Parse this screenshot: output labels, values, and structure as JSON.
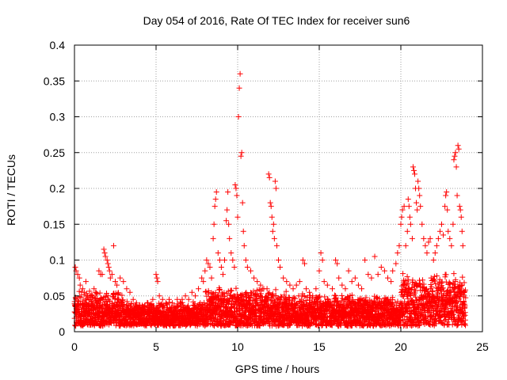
{
  "chart_data": {
    "type": "scatter",
    "title": "Day 054 of 2016, Rate Of TEC Index for receiver sun6",
    "xlabel": "GPS time / hours",
    "ylabel": "ROTI / TECUs",
    "xlim": [
      0,
      25
    ],
    "ylim": [
      0,
      0.4
    ],
    "grid": true,
    "marker": "+",
    "series_color": "#ff0000",
    "x_ticks": [
      0,
      5,
      10,
      15,
      20,
      25
    ],
    "x_tick_labels": [
      "0",
      "5",
      "10",
      "15",
      "20",
      "25"
    ],
    "y_ticks": [
      0,
      0.05,
      0.1,
      0.15,
      0.2,
      0.25,
      0.3,
      0.35,
      0.4
    ],
    "y_tick_labels": [
      "0",
      "0.05",
      "0.1",
      "0.15",
      "0.2",
      "0.25",
      "0.3",
      "0.35",
      "0.4"
    ],
    "series": [
      {
        "name": "ROTI",
        "points": [
          [
            0.05,
            0.09
          ],
          [
            0.1,
            0.085
          ],
          [
            0.2,
            0.08
          ],
          [
            0.3,
            0.075
          ],
          [
            0.35,
            0.065
          ],
          [
            0.5,
            0.06
          ],
          [
            0.6,
            0.055
          ],
          [
            0.7,
            0.07
          ],
          [
            0.8,
            0.05
          ],
          [
            0.9,
            0.045
          ],
          [
            1.0,
            0.05
          ],
          [
            1.2,
            0.06
          ],
          [
            1.3,
            0.055
          ],
          [
            1.5,
            0.085
          ],
          [
            1.6,
            0.08
          ],
          [
            1.7,
            0.08
          ],
          [
            1.8,
            0.115
          ],
          [
            1.85,
            0.11
          ],
          [
            1.9,
            0.105
          ],
          [
            2.0,
            0.1
          ],
          [
            2.05,
            0.095
          ],
          [
            2.1,
            0.09
          ],
          [
            2.15,
            0.085
          ],
          [
            2.2,
            0.075
          ],
          [
            2.3,
            0.08
          ],
          [
            2.4,
            0.12
          ],
          [
            2.5,
            0.07
          ],
          [
            2.6,
            0.065
          ],
          [
            2.8,
            0.075
          ],
          [
            3.0,
            0.07
          ],
          [
            3.2,
            0.06
          ],
          [
            3.4,
            0.055
          ],
          [
            3.6,
            0.045
          ],
          [
            3.8,
            0.04
          ],
          [
            4.0,
            0.035
          ],
          [
            4.2,
            0.035
          ],
          [
            4.5,
            0.04
          ],
          [
            4.8,
            0.045
          ],
          [
            5.0,
            0.08
          ],
          [
            5.05,
            0.075
          ],
          [
            5.1,
            0.07
          ],
          [
            5.2,
            0.05
          ],
          [
            5.4,
            0.045
          ],
          [
            5.6,
            0.04
          ],
          [
            5.8,
            0.045
          ],
          [
            6.0,
            0.04
          ],
          [
            6.3,
            0.045
          ],
          [
            6.6,
            0.045
          ],
          [
            6.8,
            0.05
          ],
          [
            7.0,
            0.045
          ],
          [
            7.2,
            0.055
          ],
          [
            7.4,
            0.05
          ],
          [
            7.6,
            0.06
          ],
          [
            7.8,
            0.075
          ],
          [
            7.9,
            0.07
          ],
          [
            8.0,
            0.085
          ],
          [
            8.1,
            0.1
          ],
          [
            8.2,
            0.095
          ],
          [
            8.3,
            0.09
          ],
          [
            8.4,
            0.075
          ],
          [
            8.5,
            0.13
          ],
          [
            8.55,
            0.15
          ],
          [
            8.6,
            0.175
          ],
          [
            8.65,
            0.185
          ],
          [
            8.7,
            0.195
          ],
          [
            8.8,
            0.11
          ],
          [
            8.9,
            0.1
          ],
          [
            9.0,
            0.09
          ],
          [
            9.1,
            0.08
          ],
          [
            9.2,
            0.1
          ],
          [
            9.3,
            0.155
          ],
          [
            9.35,
            0.17
          ],
          [
            9.4,
            0.195
          ],
          [
            9.45,
            0.15
          ],
          [
            9.5,
            0.13
          ],
          [
            9.6,
            0.11
          ],
          [
            9.7,
            0.1
          ],
          [
            9.8,
            0.09
          ],
          [
            9.85,
            0.205
          ],
          [
            9.9,
            0.2
          ],
          [
            9.95,
            0.19
          ],
          [
            10.0,
            0.16
          ],
          [
            10.05,
            0.3
          ],
          [
            10.1,
            0.34
          ],
          [
            10.15,
            0.36
          ],
          [
            10.2,
            0.245
          ],
          [
            10.25,
            0.25
          ],
          [
            10.3,
            0.18
          ],
          [
            10.35,
            0.14
          ],
          [
            10.4,
            0.12
          ],
          [
            10.5,
            0.1
          ],
          [
            10.6,
            0.09
          ],
          [
            10.8,
            0.085
          ],
          [
            11.0,
            0.075
          ],
          [
            11.2,
            0.07
          ],
          [
            11.4,
            0.065
          ],
          [
            11.6,
            0.06
          ],
          [
            11.8,
            0.06
          ],
          [
            11.9,
            0.22
          ],
          [
            11.95,
            0.215
          ],
          [
            12.0,
            0.18
          ],
          [
            12.05,
            0.175
          ],
          [
            12.1,
            0.16
          ],
          [
            12.15,
            0.14
          ],
          [
            12.2,
            0.15
          ],
          [
            12.25,
            0.13
          ],
          [
            12.3,
            0.21
          ],
          [
            12.35,
            0.2
          ],
          [
            12.4,
            0.12
          ],
          [
            12.5,
            0.1
          ],
          [
            12.6,
            0.09
          ],
          [
            12.8,
            0.075
          ],
          [
            13.0,
            0.07
          ],
          [
            13.2,
            0.065
          ],
          [
            13.4,
            0.06
          ],
          [
            13.6,
            0.065
          ],
          [
            13.8,
            0.07
          ],
          [
            14.0,
            0.1
          ],
          [
            14.1,
            0.095
          ],
          [
            14.2,
            0.06
          ],
          [
            14.4,
            0.055
          ],
          [
            14.6,
            0.05
          ],
          [
            14.8,
            0.06
          ],
          [
            15.0,
            0.085
          ],
          [
            15.1,
            0.11
          ],
          [
            15.2,
            0.1
          ],
          [
            15.3,
            0.07
          ],
          [
            15.5,
            0.065
          ],
          [
            15.8,
            0.06
          ],
          [
            16.0,
            0.1
          ],
          [
            16.1,
            0.095
          ],
          [
            16.2,
            0.075
          ],
          [
            16.4,
            0.065
          ],
          [
            16.6,
            0.06
          ],
          [
            16.8,
            0.085
          ],
          [
            17.0,
            0.07
          ],
          [
            17.2,
            0.075
          ],
          [
            17.4,
            0.065
          ],
          [
            17.6,
            0.06
          ],
          [
            17.8,
            0.1
          ],
          [
            18.0,
            0.08
          ],
          [
            18.2,
            0.075
          ],
          [
            18.4,
            0.105
          ],
          [
            18.6,
            0.08
          ],
          [
            18.8,
            0.09
          ],
          [
            19.0,
            0.085
          ],
          [
            19.2,
            0.075
          ],
          [
            19.4,
            0.07
          ],
          [
            19.5,
            0.085
          ],
          [
            19.7,
            0.095
          ],
          [
            19.8,
            0.11
          ],
          [
            19.9,
            0.12
          ],
          [
            20.0,
            0.15
          ],
          [
            20.05,
            0.16
          ],
          [
            20.1,
            0.17
          ],
          [
            20.2,
            0.175
          ],
          [
            20.3,
            0.12
          ],
          [
            20.4,
            0.14
          ],
          [
            20.45,
            0.185
          ],
          [
            20.5,
            0.175
          ],
          [
            20.55,
            0.16
          ],
          [
            20.6,
            0.15
          ],
          [
            20.7,
            0.13
          ],
          [
            20.75,
            0.23
          ],
          [
            20.8,
            0.225
          ],
          [
            20.85,
            0.22
          ],
          [
            20.9,
            0.2
          ],
          [
            20.95,
            0.18
          ],
          [
            21.0,
            0.17
          ],
          [
            21.05,
            0.21
          ],
          [
            21.1,
            0.2
          ],
          [
            21.15,
            0.19
          ],
          [
            21.2,
            0.175
          ],
          [
            21.3,
            0.15
          ],
          [
            21.4,
            0.13
          ],
          [
            21.5,
            0.12
          ],
          [
            21.6,
            0.11
          ],
          [
            21.7,
            0.125
          ],
          [
            21.8,
            0.13
          ],
          [
            22.0,
            0.1
          ],
          [
            22.1,
            0.11
          ],
          [
            22.2,
            0.12
          ],
          [
            22.3,
            0.13
          ],
          [
            22.4,
            0.14
          ],
          [
            22.5,
            0.15
          ],
          [
            22.6,
            0.135
          ],
          [
            22.7,
            0.175
          ],
          [
            22.75,
            0.19
          ],
          [
            22.8,
            0.195
          ],
          [
            22.85,
            0.17
          ],
          [
            22.9,
            0.14
          ],
          [
            23.0,
            0.13
          ],
          [
            23.1,
            0.12
          ],
          [
            23.2,
            0.15
          ],
          [
            23.25,
            0.24
          ],
          [
            23.3,
            0.245
          ],
          [
            23.35,
            0.25
          ],
          [
            23.4,
            0.23
          ],
          [
            23.45,
            0.19
          ],
          [
            23.5,
            0.26
          ],
          [
            23.55,
            0.255
          ],
          [
            23.6,
            0.175
          ],
          [
            23.65,
            0.17
          ],
          [
            23.7,
            0.16
          ],
          [
            23.75,
            0.14
          ],
          [
            23.8,
            0.12
          ]
        ]
      }
    ]
  }
}
